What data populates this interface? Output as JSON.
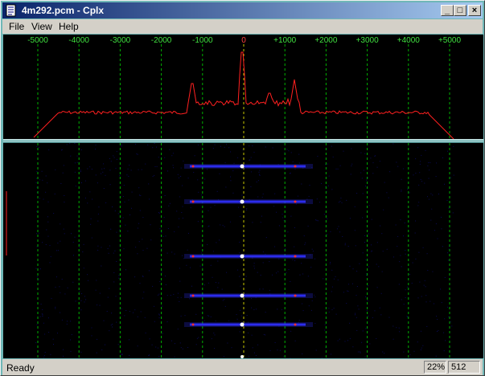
{
  "window": {
    "title": "4m292.pcm - Cplx",
    "minimize_symbol": "_",
    "maximize_symbol": "□",
    "close_symbol": "×",
    "app_icon": "notepad-document-icon"
  },
  "menu": {
    "items": [
      {
        "label": "File"
      },
      {
        "label": "View"
      },
      {
        "label": "Help"
      }
    ]
  },
  "spectrum": {
    "frequency_ticks": [
      "-5000",
      "-4000",
      "-3000",
      "-2000",
      "-1000",
      "0",
      "+1000",
      "+2000",
      "+3000",
      "+4000",
      "+5000"
    ],
    "gridline_color": "#00b000",
    "center_line_color": "#c8c800",
    "trace_color": "#ff2020",
    "tick_label_color": "#40e040"
  },
  "waterfall": {
    "trace_color": "#3030ff",
    "highlight_color": "#ff3030",
    "center_line_color": "#c8c800"
  },
  "status": {
    "text": "Ready",
    "zoom": "22%",
    "fft_size": "512"
  }
}
